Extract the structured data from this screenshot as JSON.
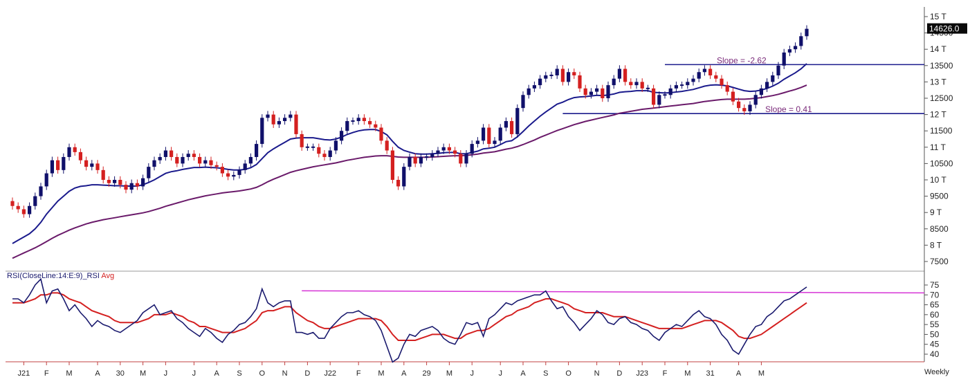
{
  "chart_data": [
    {
      "type": "candlestick",
      "panel": "price",
      "y_scale": "linear",
      "ylim": [
        7250,
        15300
      ],
      "y_ticks": [
        {
          "value": 15000,
          "label": "15 T"
        },
        {
          "value": 14500,
          "label": "14500"
        },
        {
          "value": 14000,
          "label": "14 T"
        },
        {
          "value": 13500,
          "label": "13500"
        },
        {
          "value": 13000,
          "label": "13 T"
        },
        {
          "value": 12500,
          "label": "12500"
        },
        {
          "value": 12000,
          "label": "12 T"
        },
        {
          "value": 11500,
          "label": "11500"
        },
        {
          "value": 11000,
          "label": "11 T"
        },
        {
          "value": 10500,
          "label": "10500"
        },
        {
          "value": 10000,
          "label": "10 T"
        },
        {
          "value": 9500,
          "label": "9500"
        },
        {
          "value": 9000,
          "label": "9 T"
        },
        {
          "value": 8500,
          "label": "8500"
        },
        {
          "value": 8000,
          "label": "8 T"
        },
        {
          "value": 7500,
          "label": "7500"
        }
      ],
      "last_price_label": "14626.0",
      "close": [
        9200,
        9100,
        8950,
        9200,
        9500,
        9800,
        10200,
        10600,
        10300,
        10700,
        11000,
        10850,
        10600,
        10400,
        10500,
        10300,
        10000,
        9900,
        10000,
        9850,
        9700,
        9900,
        9800,
        10050,
        10400,
        10600,
        10700,
        10900,
        10700,
        10500,
        10700,
        10800,
        10700,
        10500,
        10600,
        10450,
        10400,
        10200,
        10100,
        10150,
        10300,
        10500,
        10700,
        11100,
        11900,
        12000,
        11700,
        11800,
        11900,
        12000,
        11400,
        11000,
        11000,
        11000,
        10800,
        10700,
        10900,
        11200,
        11500,
        11800,
        11800,
        11900,
        11800,
        11700,
        11600,
        11200,
        10900,
        10000,
        9800,
        10400,
        10700,
        10500,
        10700,
        10700,
        10800,
        10900,
        11000,
        10900,
        10800,
        10500,
        10800,
        11100,
        11200,
        11600,
        11100,
        11200,
        11600,
        11800,
        11400,
        12200,
        12600,
        12800,
        12900,
        13100,
        13200,
        13200,
        13400,
        13000,
        13300,
        13200,
        12800,
        12600,
        12700,
        12800,
        12500,
        12900,
        13100,
        13400,
        13000,
        12900,
        13000,
        12800,
        12800,
        12300,
        12600,
        12600,
        12800,
        12900,
        12900,
        13000,
        13100,
        13300,
        13400,
        13200,
        13100,
        12900,
        12700,
        12400,
        12200,
        12100,
        12300,
        12600,
        12800,
        13000,
        13200,
        13500,
        13900,
        14000,
        14100,
        14400,
        14626
      ],
      "ema_fast": {
        "name": "",
        "color": "#1a1a8c",
        "values": [
          8050,
          8150,
          8250,
          8350,
          8500,
          8700,
          8950,
          9150,
          9350,
          9500,
          9650,
          9750,
          9800,
          9820,
          9850,
          9850,
          9840,
          9830,
          9820,
          9820,
          9810,
          9810,
          9810,
          9850,
          9920,
          10000,
          10100,
          10200,
          10250,
          10280,
          10320,
          10350,
          10380,
          10380,
          10390,
          10380,
          10370,
          10350,
          10320,
          10300,
          10300,
          10320,
          10370,
          10470,
          10650,
          10830,
          10950,
          11050,
          11150,
          11250,
          11280,
          11290,
          11290,
          11290,
          11260,
          11230,
          11220,
          11250,
          11310,
          11390,
          11450,
          11500,
          11530,
          11540,
          11540,
          11480,
          11380,
          11180,
          11000,
          10900,
          10850,
          10800,
          10790,
          10790,
          10800,
          10810,
          10830,
          10840,
          10840,
          10800,
          10800,
          10840,
          10880,
          10950,
          10970,
          11000,
          11080,
          11170,
          11200,
          11320,
          11480,
          11650,
          11800,
          11950,
          12080,
          12200,
          12320,
          12380,
          12460,
          12520,
          12540,
          12550,
          12570,
          12590,
          12580,
          12600,
          12630,
          12680,
          12700,
          12710,
          12730,
          12730,
          12730,
          12680,
          12670,
          12660,
          12670,
          12690,
          12710,
          12740,
          12770,
          12820,
          12870,
          12900,
          12910,
          12900,
          12880,
          12830,
          12780,
          12730,
          12710,
          12720,
          12750,
          12800,
          12870,
          12960,
          13080,
          13180,
          13280,
          13400,
          13560
        ]
      },
      "ema_slow": {
        "name": "",
        "color": "#6a1a6a",
        "values": [
          7600,
          7680,
          7760,
          7840,
          7920,
          8010,
          8110,
          8210,
          8300,
          8380,
          8460,
          8530,
          8590,
          8650,
          8700,
          8740,
          8780,
          8810,
          8840,
          8870,
          8900,
          8930,
          8960,
          8990,
          9030,
          9080,
          9130,
          9190,
          9240,
          9290,
          9340,
          9390,
          9430,
          9470,
          9510,
          9540,
          9570,
          9600,
          9620,
          9640,
          9660,
          9690,
          9720,
          9770,
          9850,
          9940,
          10020,
          10090,
          10160,
          10230,
          10280,
          10320,
          10360,
          10400,
          10430,
          10460,
          10490,
          10520,
          10560,
          10600,
          10630,
          10660,
          10690,
          10710,
          10730,
          10740,
          10740,
          10720,
          10700,
          10690,
          10690,
          10690,
          10690,
          10690,
          10700,
          10710,
          10720,
          10730,
          10740,
          10740,
          10750,
          10770,
          10790,
          10820,
          10840,
          10860,
          10900,
          10940,
          10970,
          11020,
          11080,
          11150,
          11220,
          11300,
          11370,
          11440,
          11510,
          11570,
          11630,
          11690,
          11740,
          11790,
          11830,
          11870,
          11910,
          11950,
          11990,
          12040,
          12070,
          12100,
          12130,
          12160,
          12180,
          12200,
          12220,
          12240,
          12260,
          12280,
          12300,
          12320,
          12340,
          12370,
          12400,
          12420,
          12440,
          12460,
          12470,
          12470,
          12470,
          12470,
          12480,
          12500,
          12520,
          12550,
          12580,
          12620,
          12670,
          12720,
          12770,
          12830,
          12900
        ]
      },
      "annotations": [
        {
          "text": "Slope = -2.62",
          "value": 13530
        },
        {
          "text": "Slope = 0.41",
          "value": 12030
        }
      ]
    },
    {
      "type": "line",
      "panel": "indicator",
      "title": "RSI(CloseLine:14:E:9)_RSI",
      "avg_label": "Avg",
      "ylim": [
        35,
        78
      ],
      "y_ticks": [
        75,
        70,
        65,
        60,
        55,
        50,
        45,
        40
      ],
      "reference_line": {
        "value": 71,
        "color": "#d633d6"
      },
      "series": [
        {
          "name": "",
          "color": "#1a1a6e",
          "values": [
            68,
            68,
            66,
            70,
            75,
            78,
            66,
            72,
            73,
            68,
            62,
            65,
            61,
            58,
            54,
            57,
            55,
            54,
            52,
            51,
            53,
            55,
            57,
            61,
            63,
            65,
            60,
            61,
            62,
            58,
            56,
            53,
            51,
            49,
            53,
            51,
            48,
            46,
            50,
            52,
            55,
            56,
            59,
            63,
            73,
            66,
            64,
            66,
            67,
            67,
            51,
            51,
            50,
            51,
            48,
            48,
            53,
            56,
            59,
            61,
            61,
            62,
            60,
            59,
            57,
            52,
            44,
            36,
            38,
            45,
            50,
            49,
            52,
            53,
            54,
            52,
            48,
            46,
            45,
            50,
            56,
            55,
            56,
            49,
            58,
            60,
            63,
            66,
            65,
            67,
            68,
            69,
            70,
            70,
            72,
            67,
            63,
            64,
            59,
            56,
            52,
            55,
            58,
            62,
            60,
            56,
            55,
            58,
            59,
            56,
            55,
            53,
            52,
            49,
            47,
            51,
            53,
            55,
            54,
            57,
            60,
            62,
            59,
            58,
            55,
            50,
            47,
            42,
            40,
            45,
            50,
            54,
            55,
            59,
            61,
            64,
            67,
            68,
            70,
            72,
            74
          ]
        },
        {
          "name": "Avg",
          "color": "#d42020",
          "values": [
            66,
            66,
            66,
            67,
            68,
            70,
            70,
            71,
            71,
            70,
            68,
            67,
            66,
            64,
            62,
            61,
            60,
            59,
            57,
            56,
            56,
            56,
            56,
            57,
            58,
            60,
            60,
            60,
            61,
            60,
            59,
            57,
            56,
            54,
            54,
            53,
            52,
            51,
            51,
            51,
            52,
            53,
            55,
            57,
            61,
            62,
            62,
            63,
            64,
            64,
            61,
            59,
            57,
            56,
            54,
            53,
            53,
            54,
            55,
            56,
            57,
            58,
            58,
            58,
            58,
            57,
            54,
            50,
            47,
            47,
            47,
            47,
            48,
            49,
            50,
            50,
            50,
            49,
            48,
            48,
            50,
            51,
            52,
            52,
            53,
            55,
            57,
            59,
            60,
            62,
            63,
            64,
            66,
            67,
            68,
            68,
            67,
            66,
            65,
            63,
            62,
            61,
            61,
            61,
            61,
            60,
            59,
            59,
            59,
            58,
            57,
            56,
            55,
            54,
            53,
            53,
            53,
            53,
            53,
            54,
            55,
            56,
            57,
            57,
            57,
            56,
            54,
            52,
            49,
            48,
            48,
            49,
            50,
            52,
            54,
            56,
            58,
            60,
            62,
            64,
            66
          ]
        }
      ]
    }
  ],
  "x_axis": {
    "labels": [
      {
        "label": "J21",
        "index": 2
      },
      {
        "label": "F",
        "index": 6
      },
      {
        "label": "M",
        "index": 10
      },
      {
        "label": "A",
        "index": 15
      },
      {
        "label": "30",
        "index": 19
      },
      {
        "label": "M",
        "index": 23
      },
      {
        "label": "J",
        "index": 27
      },
      {
        "label": "J",
        "index": 32
      },
      {
        "label": "A",
        "index": 36
      },
      {
        "label": "S",
        "index": 40
      },
      {
        "label": "O",
        "index": 44
      },
      {
        "label": "N",
        "index": 48
      },
      {
        "label": "D",
        "index": 52
      },
      {
        "label": "J22",
        "index": 56
      },
      {
        "label": "F",
        "index": 61
      },
      {
        "label": "M",
        "index": 65
      },
      {
        "label": "A",
        "index": 69
      },
      {
        "label": "29",
        "index": 73
      },
      {
        "label": "M",
        "index": 77
      },
      {
        "label": "J",
        "index": 81
      },
      {
        "label": "J",
        "index": 86
      },
      {
        "label": "A",
        "index": 90
      },
      {
        "label": "S",
        "index": 94
      },
      {
        "label": "O",
        "index": 98
      },
      {
        "label": "N",
        "index": 103
      },
      {
        "label": "D",
        "index": 107
      },
      {
        "label": "J23",
        "index": 111
      },
      {
        "label": "F",
        "index": 115
      },
      {
        "label": "M",
        "index": 119
      },
      {
        "label": "31",
        "index": 123
      },
      {
        "label": "A",
        "index": 128
      },
      {
        "label": "M",
        "index": 132
      }
    ]
  },
  "timeframe_label": "Weekly"
}
